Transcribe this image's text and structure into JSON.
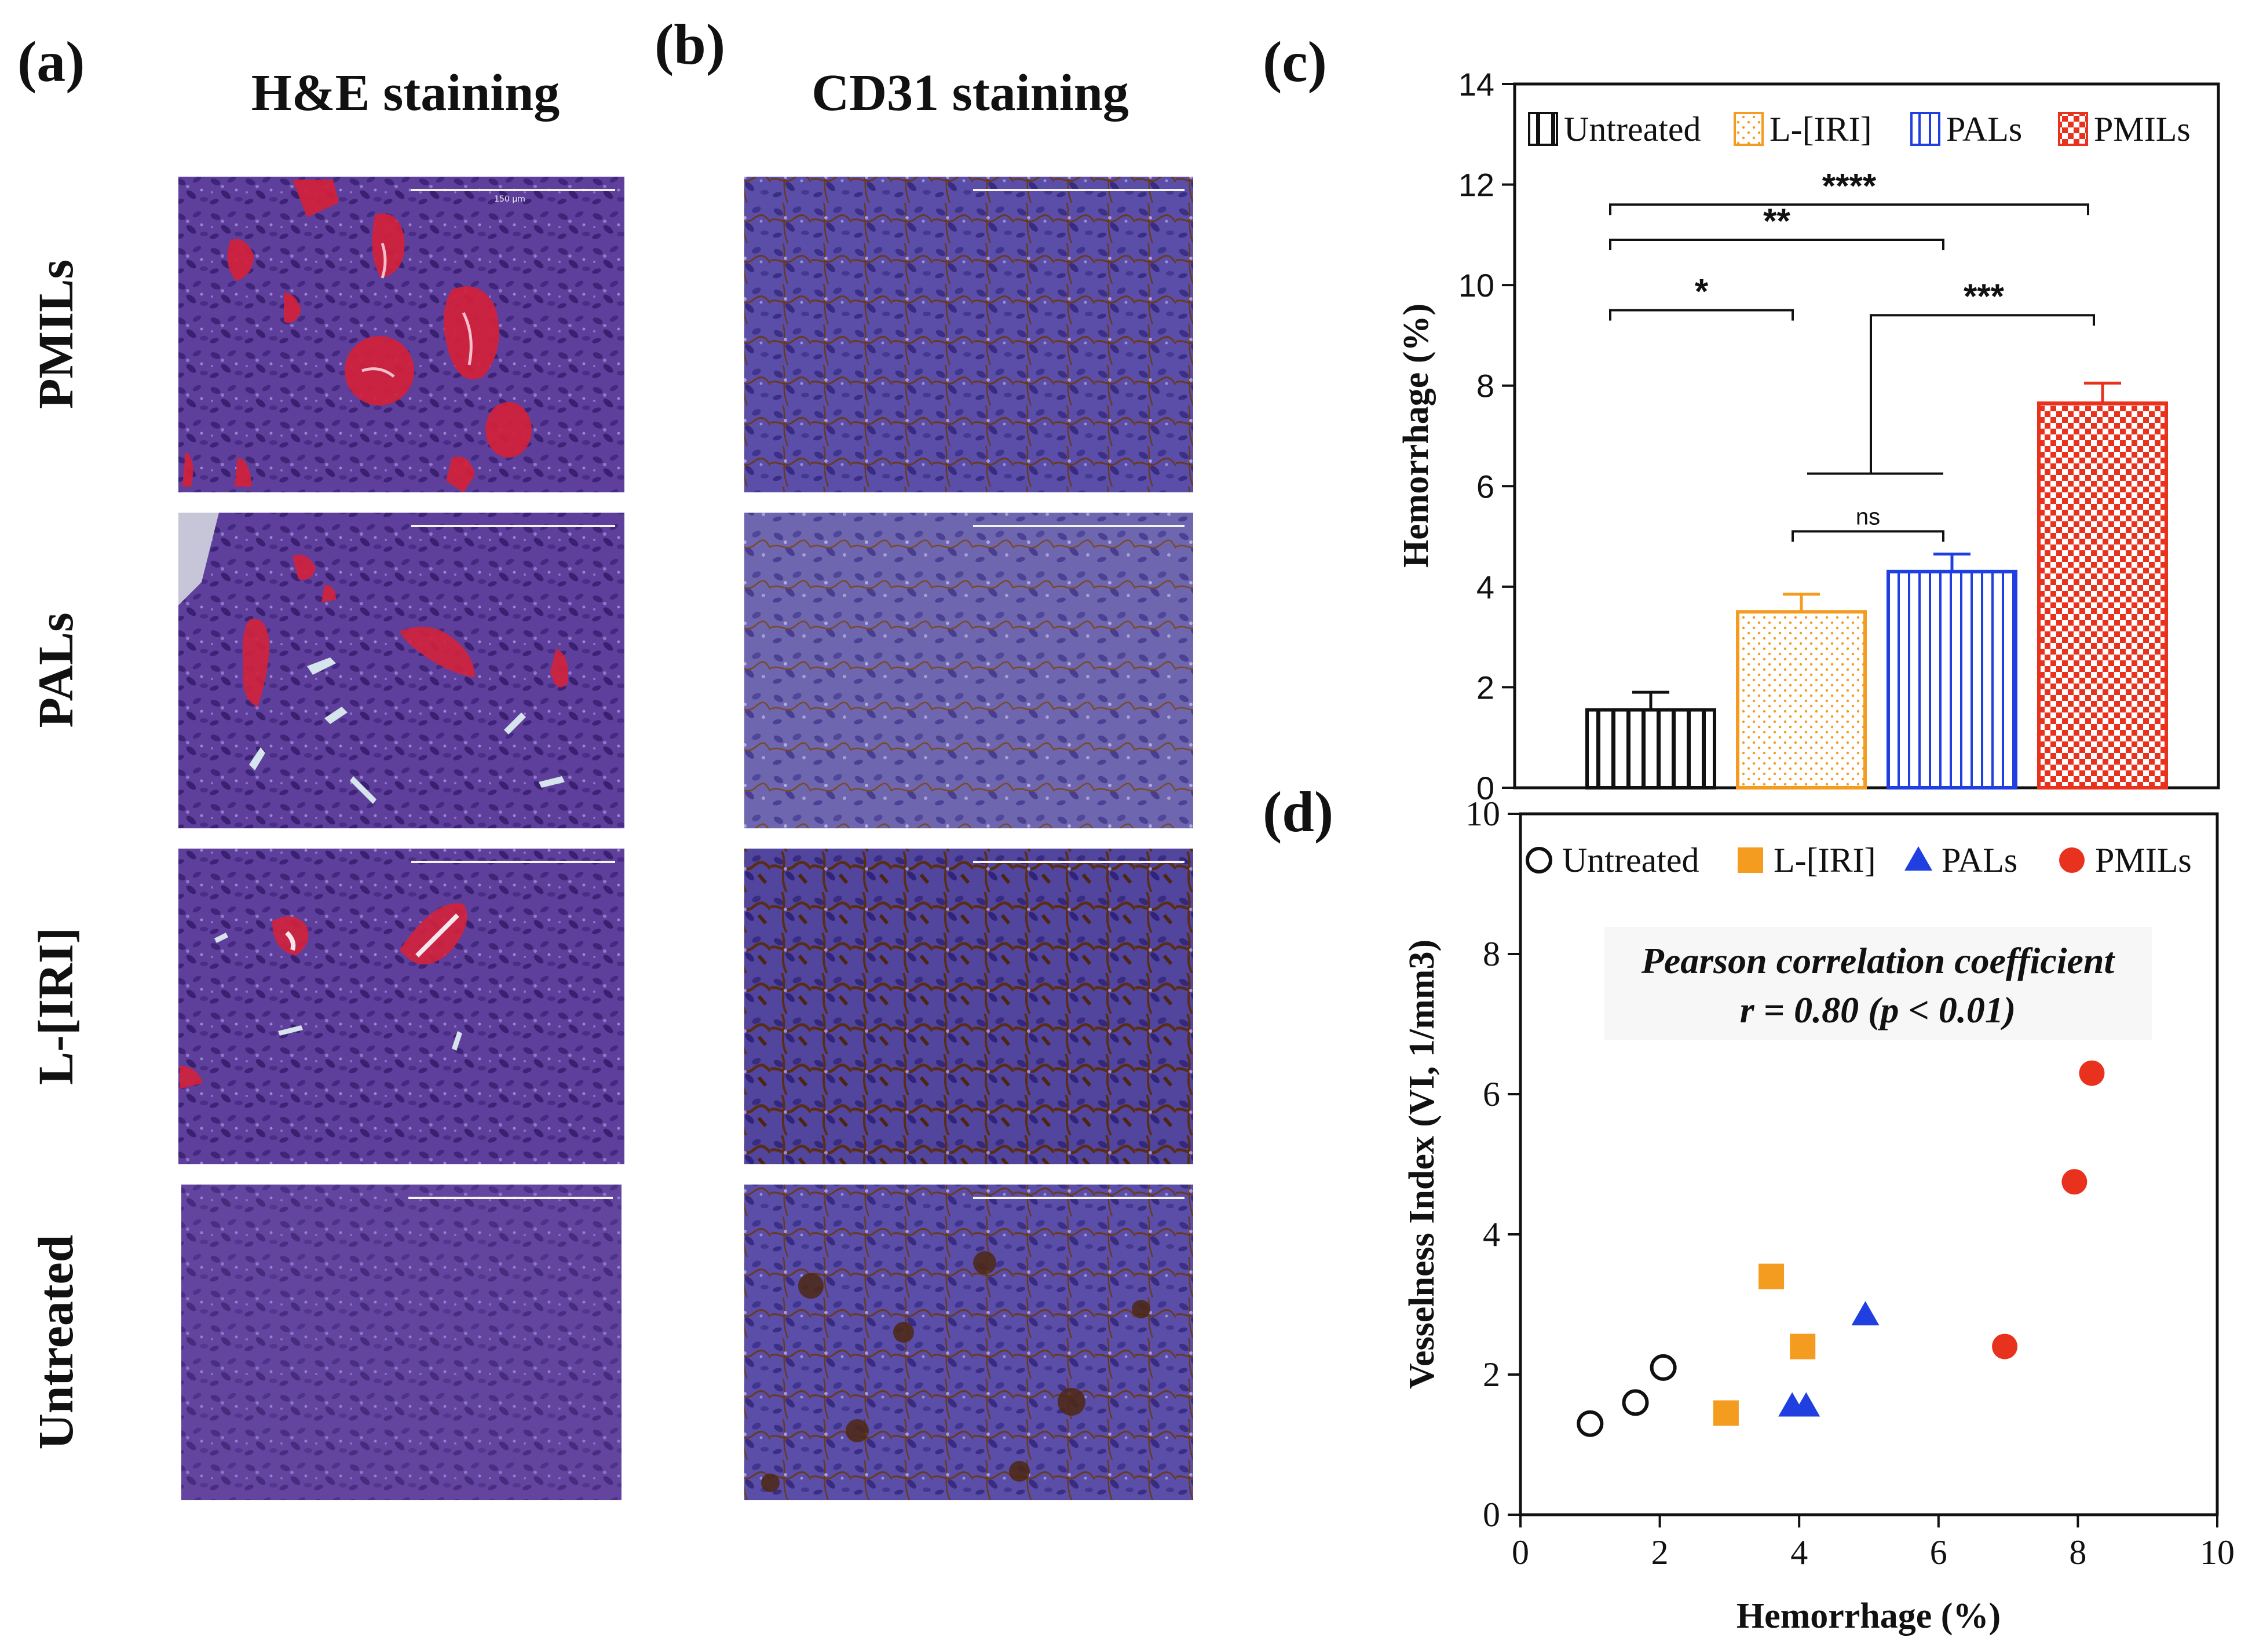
{
  "panels": {
    "a": {
      "letter": "(a)",
      "title": "H&E staining"
    },
    "b": {
      "letter": "(b)",
      "title": "CD31 staining"
    },
    "c": {
      "letter": "(c)"
    },
    "d": {
      "letter": "(d)"
    }
  },
  "row_labels": [
    "PMILs",
    "PALs",
    "L-[IRI]",
    "Untreated"
  ],
  "scale_bar_label": "150 µm",
  "colors": {
    "untreated": "#111111",
    "liri": "#f39c1f",
    "pals": "#1f3fe0",
    "pmils": "#e8321e",
    "he_base": "#5a3c9a",
    "cd31_base": "#4b3e96",
    "cd31_stain": "#6b3a1c"
  },
  "chart_data": [
    {
      "type": "bar",
      "panel": "c",
      "ylabel": "Hemorrhage (%)",
      "xlabel": "",
      "ylim": [
        0,
        14
      ],
      "yticks": [
        0,
        2,
        4,
        6,
        8,
        10,
        12,
        14
      ],
      "categories": [
        "Untreated",
        "L-[IRI]",
        "PALs",
        "PMILs"
      ],
      "values": [
        1.55,
        3.5,
        4.3,
        7.65
      ],
      "errors": [
        0.35,
        0.35,
        0.35,
        0.4
      ],
      "legend": {
        "placement": "top",
        "entries": [
          "Untreated",
          "L-[IRI]",
          "PALs",
          "PMILs"
        ]
      },
      "significance": [
        {
          "from": "Untreated",
          "to": "L-[IRI]",
          "label": "*",
          "y": 9.5
        },
        {
          "from": "Untreated",
          "to": "PALs",
          "label": "**",
          "y": 10.9
        },
        {
          "from": "Untreated",
          "to": "PMILs",
          "label": "****",
          "y": 11.6
        },
        {
          "from": "L-[IRI]",
          "to": "PALs",
          "label": "ns",
          "y": 5.1
        },
        {
          "from": "L-[IRI]+PALs",
          "to": "PMILs",
          "label": "***",
          "y": 9.4
        }
      ]
    },
    {
      "type": "scatter",
      "panel": "d",
      "xlabel": "Hemorrhage (%)",
      "ylabel": "Vesselness Index (VI, 1/mm3)",
      "xlim": [
        0,
        10
      ],
      "ylim": [
        0,
        10
      ],
      "xticks": [
        0,
        2,
        4,
        6,
        8,
        10
      ],
      "yticks": [
        0,
        2,
        4,
        6,
        8,
        10
      ],
      "legend": {
        "placement": "top",
        "entries": [
          "Untreated",
          "L-[IRI]",
          "PALs",
          "PMILs"
        ]
      },
      "annotation": {
        "line1": "Pearson correlation coefficient",
        "line2": "r = 0.80    (p < 0.01)"
      },
      "series": [
        {
          "name": "Untreated",
          "marker": "circle-open",
          "points": [
            [
              1.0,
              1.3
            ],
            [
              1.65,
              1.6
            ],
            [
              2.05,
              2.1
            ]
          ]
        },
        {
          "name": "L-[IRI]",
          "marker": "square",
          "points": [
            [
              3.6,
              3.4
            ],
            [
              4.05,
              2.4
            ],
            [
              2.95,
              1.45
            ]
          ]
        },
        {
          "name": "PALs",
          "marker": "triangle",
          "points": [
            [
              4.95,
              2.85
            ],
            [
              3.9,
              1.55
            ],
            [
              4.1,
              1.55
            ]
          ]
        },
        {
          "name": "PMILs",
          "marker": "circle",
          "points": [
            [
              8.2,
              6.3
            ],
            [
              7.95,
              4.75
            ],
            [
              6.95,
              2.4
            ]
          ]
        }
      ]
    }
  ]
}
